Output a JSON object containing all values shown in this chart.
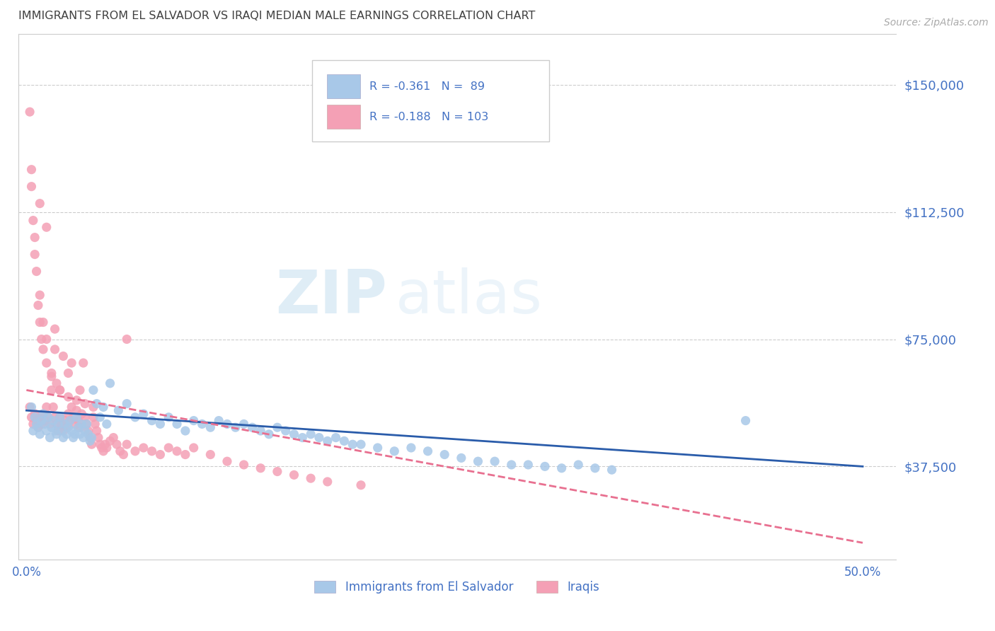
{
  "title": "IMMIGRANTS FROM EL SALVADOR VS IRAQI MEDIAN MALE EARNINGS CORRELATION CHART",
  "source": "Source: ZipAtlas.com",
  "ylabel": "Median Male Earnings",
  "xlim": [
    -0.005,
    0.52
  ],
  "ylim": [
    10000,
    165000
  ],
  "yticks": [
    37500,
    75000,
    112500,
    150000
  ],
  "ytick_labels": [
    "$37,500",
    "$75,000",
    "$112,500",
    "$150,000"
  ],
  "xticks": [
    0.0,
    0.1,
    0.2,
    0.3,
    0.4,
    0.5
  ],
  "xtick_labels": [
    "0.0%",
    "",
    "",
    "",
    "",
    "50.0%"
  ],
  "blue_color": "#a8c8e8",
  "pink_color": "#f4a0b5",
  "blue_line_color": "#2a5caa",
  "pink_line_color": "#e87090",
  "legend_R_blue": "R = -0.361",
  "legend_N_blue": "N =  89",
  "legend_R_pink": "R = -0.188",
  "legend_N_pink": "N = 103",
  "label_blue": "Immigrants from El Salvador",
  "label_pink": "Iraqis",
  "watermark_zip": "ZIP",
  "watermark_atlas": "atlas",
  "axis_color": "#4472c4",
  "title_color": "#404040",
  "blue_scatter_x": [
    0.003,
    0.004,
    0.005,
    0.006,
    0.007,
    0.008,
    0.009,
    0.01,
    0.011,
    0.012,
    0.013,
    0.014,
    0.015,
    0.016,
    0.017,
    0.018,
    0.019,
    0.02,
    0.021,
    0.022,
    0.023,
    0.024,
    0.025,
    0.026,
    0.027,
    0.028,
    0.029,
    0.03,
    0.031,
    0.032,
    0.033,
    0.034,
    0.035,
    0.036,
    0.037,
    0.038,
    0.039,
    0.04,
    0.042,
    0.044,
    0.046,
    0.048,
    0.05,
    0.055,
    0.06,
    0.065,
    0.07,
    0.075,
    0.08,
    0.085,
    0.09,
    0.095,
    0.1,
    0.105,
    0.11,
    0.115,
    0.12,
    0.125,
    0.13,
    0.135,
    0.14,
    0.145,
    0.15,
    0.155,
    0.16,
    0.165,
    0.17,
    0.175,
    0.18,
    0.185,
    0.19,
    0.195,
    0.2,
    0.21,
    0.22,
    0.23,
    0.24,
    0.25,
    0.26,
    0.27,
    0.28,
    0.29,
    0.3,
    0.31,
    0.32,
    0.33,
    0.34,
    0.35,
    0.43
  ],
  "blue_scatter_y": [
    55000,
    48000,
    52000,
    50000,
    49000,
    47000,
    51000,
    53000,
    50000,
    48000,
    52000,
    46000,
    49000,
    51000,
    48000,
    47000,
    50000,
    52000,
    48000,
    46000,
    50000,
    47000,
    49000,
    51000,
    48000,
    46000,
    47000,
    52000,
    49000,
    47000,
    50000,
    46000,
    48000,
    50000,
    47000,
    45000,
    46000,
    60000,
    56000,
    52000,
    55000,
    50000,
    62000,
    54000,
    56000,
    52000,
    53000,
    51000,
    50000,
    52000,
    50000,
    48000,
    51000,
    50000,
    49000,
    51000,
    50000,
    49000,
    50000,
    49000,
    48000,
    47000,
    49000,
    48000,
    47000,
    46000,
    47000,
    46000,
    45000,
    46000,
    45000,
    44000,
    44000,
    43000,
    42000,
    43000,
    42000,
    41000,
    40000,
    39000,
    39000,
    38000,
    38000,
    37500,
    37000,
    38000,
    37000,
    36500,
    51000
  ],
  "pink_scatter_x": [
    0.002,
    0.003,
    0.004,
    0.005,
    0.006,
    0.007,
    0.008,
    0.009,
    0.01,
    0.011,
    0.012,
    0.013,
    0.014,
    0.015,
    0.016,
    0.017,
    0.018,
    0.019,
    0.02,
    0.021,
    0.022,
    0.023,
    0.024,
    0.025,
    0.026,
    0.027,
    0.028,
    0.029,
    0.03,
    0.031,
    0.032,
    0.033,
    0.034,
    0.035,
    0.036,
    0.037,
    0.038,
    0.039,
    0.04,
    0.041,
    0.042,
    0.043,
    0.044,
    0.045,
    0.046,
    0.047,
    0.048,
    0.05,
    0.052,
    0.054,
    0.056,
    0.058,
    0.06,
    0.065,
    0.07,
    0.075,
    0.08,
    0.085,
    0.09,
    0.095,
    0.1,
    0.11,
    0.12,
    0.13,
    0.14,
    0.15,
    0.16,
    0.17,
    0.18,
    0.2,
    0.002,
    0.003,
    0.004,
    0.005,
    0.006,
    0.007,
    0.008,
    0.009,
    0.01,
    0.012,
    0.015,
    0.018,
    0.02,
    0.025,
    0.03,
    0.035,
    0.04,
    0.012,
    0.017,
    0.022,
    0.027,
    0.032,
    0.06,
    0.003,
    0.005,
    0.008,
    0.01,
    0.015,
    0.02,
    0.008,
    0.012,
    0.017,
    0.025
  ],
  "pink_scatter_y": [
    55000,
    52000,
    50000,
    53000,
    51000,
    49000,
    52000,
    50000,
    53000,
    51000,
    55000,
    52000,
    50000,
    60000,
    55000,
    52000,
    50000,
    48000,
    52000,
    50000,
    48000,
    51000,
    49000,
    53000,
    51000,
    55000,
    52000,
    50000,
    54000,
    51000,
    49000,
    53000,
    68000,
    52000,
    50000,
    48000,
    46000,
    44000,
    52000,
    50000,
    48000,
    46000,
    44000,
    43000,
    42000,
    44000,
    43000,
    45000,
    46000,
    44000,
    42000,
    41000,
    44000,
    42000,
    43000,
    42000,
    41000,
    43000,
    42000,
    41000,
    43000,
    41000,
    39000,
    38000,
    37000,
    36000,
    35000,
    34000,
    33000,
    32000,
    142000,
    125000,
    110000,
    105000,
    95000,
    85000,
    80000,
    75000,
    72000,
    68000,
    64000,
    62000,
    60000,
    58000,
    57000,
    56000,
    55000,
    75000,
    72000,
    70000,
    68000,
    60000,
    75000,
    120000,
    100000,
    88000,
    80000,
    65000,
    60000,
    115000,
    108000,
    78000,
    65000
  ]
}
